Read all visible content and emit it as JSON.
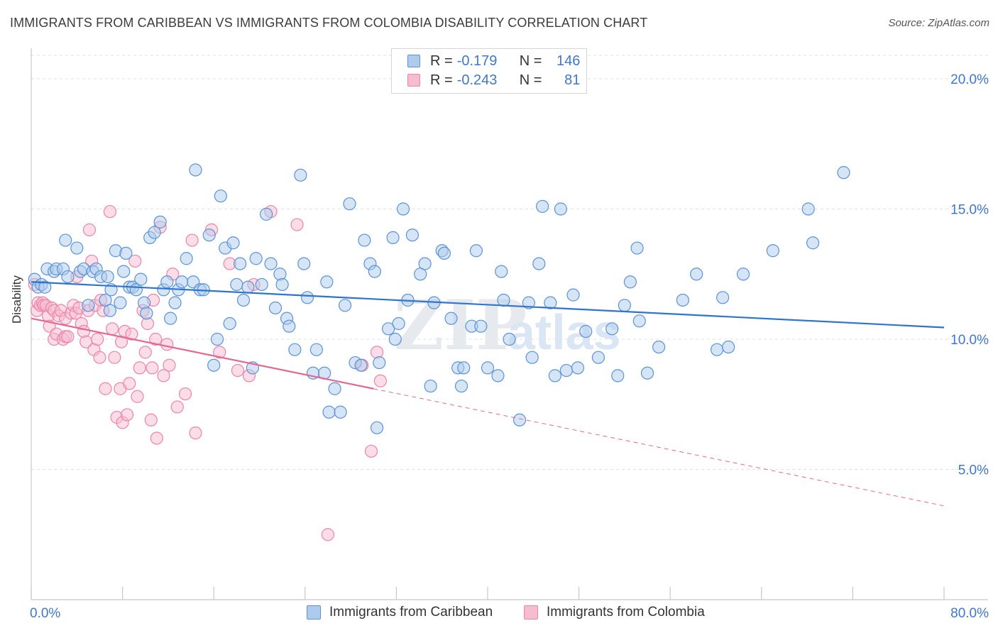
{
  "header": {
    "title": "IMMIGRANTS FROM CARIBBEAN VS IMMIGRANTS FROM COLOMBIA DISABILITY CORRELATION CHART",
    "source": "Source: ZipAtlas.com"
  },
  "watermark": {
    "zip": "ZIP",
    "atlas": "atlas"
  },
  "legend": {
    "rows": [
      {
        "r_label": "R =",
        "r_value": "-0.179",
        "n_label": "N =",
        "n_value": "146"
      },
      {
        "r_label": "R =",
        "r_value": "-0.243",
        "n_label": "N =",
        "n_value": "81"
      }
    ]
  },
  "colors": {
    "caribbean_fill": "#aecbeb",
    "caribbean_stroke": "#5b93d6",
    "caribbean_line": "#2f74cf",
    "colombia_fill": "#f6bcd0",
    "colombia_stroke": "#ec84a9",
    "colombia_line": "#e4688f",
    "axis_text": "#3f78c8",
    "grid": "#dde2ea"
  },
  "chart_data": {
    "type": "scatter",
    "title": "IMMIGRANTS FROM CARIBBEAN VS IMMIGRANTS FROM COLOMBIA DISABILITY CORRELATION CHART",
    "xlabel": "",
    "ylabel": "Disability",
    "xlim": [
      0,
      80
    ],
    "ylim": [
      0,
      20.9
    ],
    "x_tick_labels": [
      {
        "value": 0,
        "label": "0.0%"
      },
      {
        "value": 80,
        "label": "80.0%"
      }
    ],
    "y_ticks": [
      {
        "value": 5,
        "label": "5.0%"
      },
      {
        "value": 10,
        "label": "10.0%"
      },
      {
        "value": 15,
        "label": "15.0%"
      },
      {
        "value": 20,
        "label": "20.0%"
      }
    ],
    "x_minor_ticks": [
      0,
      8,
      16,
      24,
      32,
      40,
      48,
      56,
      64,
      72,
      80
    ],
    "grid": true,
    "legend_position": "top-center",
    "series": [
      {
        "name": "Immigrants from Caribbean",
        "color": "#5b93d6",
        "trend": {
          "x": [
            0,
            80
          ],
          "y": [
            12.2,
            10.45
          ]
        },
        "points": [
          [
            0.3,
            12.3
          ],
          [
            0.6,
            12.0
          ],
          [
            0.9,
            12.1
          ],
          [
            1.2,
            12.0
          ],
          [
            1.4,
            12.7
          ],
          [
            2.0,
            12.6
          ],
          [
            2.2,
            12.7
          ],
          [
            2.8,
            12.7
          ],
          [
            3.0,
            13.8
          ],
          [
            3.2,
            12.4
          ],
          [
            4.0,
            13.5
          ],
          [
            4.3,
            12.6
          ],
          [
            4.6,
            12.7
          ],
          [
            5.0,
            11.3
          ],
          [
            5.4,
            12.6
          ],
          [
            5.7,
            12.7
          ],
          [
            6.1,
            12.4
          ],
          [
            6.5,
            11.5
          ],
          [
            6.7,
            12.4
          ],
          [
            6.9,
            11.1
          ],
          [
            7.0,
            11.9
          ],
          [
            7.4,
            13.4
          ],
          [
            7.8,
            11.4
          ],
          [
            8.1,
            12.6
          ],
          [
            8.3,
            13.3
          ],
          [
            8.6,
            12.0
          ],
          [
            8.9,
            12.0
          ],
          [
            9.2,
            11.9
          ],
          [
            9.6,
            12.3
          ],
          [
            9.9,
            11.4
          ],
          [
            10.1,
            11.0
          ],
          [
            10.4,
            13.9
          ],
          [
            10.8,
            14.1
          ],
          [
            11.3,
            14.5
          ],
          [
            11.6,
            11.9
          ],
          [
            11.9,
            12.2
          ],
          [
            12.2,
            10.8
          ],
          [
            12.6,
            11.4
          ],
          [
            12.9,
            11.9
          ],
          [
            13.2,
            12.2
          ],
          [
            13.6,
            13.1
          ],
          [
            14.2,
            12.2
          ],
          [
            14.4,
            16.5
          ],
          [
            14.8,
            11.9
          ],
          [
            15.1,
            11.9
          ],
          [
            15.6,
            14.0
          ],
          [
            16.0,
            9.0
          ],
          [
            16.3,
            10.0
          ],
          [
            16.6,
            15.5
          ],
          [
            17.0,
            13.5
          ],
          [
            17.4,
            10.6
          ],
          [
            17.7,
            13.7
          ],
          [
            18.0,
            12.1
          ],
          [
            18.3,
            12.9
          ],
          [
            18.6,
            11.5
          ],
          [
            19.0,
            12.0
          ],
          [
            19.4,
            8.9
          ],
          [
            19.7,
            13.1
          ],
          [
            20.2,
            12.1
          ],
          [
            20.6,
            14.8
          ],
          [
            21.0,
            12.9
          ],
          [
            21.4,
            11.2
          ],
          [
            21.8,
            12.5
          ],
          [
            22.0,
            12.1
          ],
          [
            22.4,
            10.8
          ],
          [
            22.6,
            10.5
          ],
          [
            23.1,
            9.6
          ],
          [
            23.6,
            16.3
          ],
          [
            23.9,
            12.9
          ],
          [
            24.2,
            11.6
          ],
          [
            24.7,
            8.7
          ],
          [
            25.0,
            9.6
          ],
          [
            25.7,
            8.7
          ],
          [
            25.9,
            12.2
          ],
          [
            26.1,
            7.2
          ],
          [
            26.6,
            8.1
          ],
          [
            27.1,
            7.2
          ],
          [
            27.5,
            11.3
          ],
          [
            27.9,
            15.2
          ],
          [
            28.4,
            9.1
          ],
          [
            28.9,
            9.0
          ],
          [
            29.2,
            13.8
          ],
          [
            29.7,
            12.9
          ],
          [
            30.1,
            12.6
          ],
          [
            30.5,
            9.1
          ],
          [
            30.3,
            6.6
          ],
          [
            31.3,
            10.4
          ],
          [
            31.7,
            13.9
          ],
          [
            31.9,
            10.0
          ],
          [
            32.2,
            10.6
          ],
          [
            32.6,
            15.0
          ],
          [
            33.0,
            11.5
          ],
          [
            33.4,
            14.0
          ],
          [
            34.1,
            12.5
          ],
          [
            34.5,
            12.9
          ],
          [
            35.0,
            8.2
          ],
          [
            35.3,
            11.4
          ],
          [
            36.0,
            13.4
          ],
          [
            36.2,
            13.3
          ],
          [
            36.8,
            10.8
          ],
          [
            37.4,
            8.9
          ],
          [
            37.7,
            8.2
          ],
          [
            37.9,
            8.9
          ],
          [
            38.6,
            10.5
          ],
          [
            39.0,
            13.4
          ],
          [
            39.4,
            10.5
          ],
          [
            40.0,
            8.9
          ],
          [
            40.9,
            8.6
          ],
          [
            41.2,
            12.6
          ],
          [
            41.4,
            11.5
          ],
          [
            41.9,
            10.0
          ],
          [
            42.8,
            6.9
          ],
          [
            43.6,
            11.4
          ],
          [
            43.9,
            9.3
          ],
          [
            44.5,
            12.9
          ],
          [
            44.8,
            15.1
          ],
          [
            45.5,
            11.4
          ],
          [
            45.9,
            8.6
          ],
          [
            46.4,
            15.0
          ],
          [
            46.9,
            8.8
          ],
          [
            47.5,
            11.7
          ],
          [
            47.9,
            8.9
          ],
          [
            48.6,
            10.3
          ],
          [
            49.7,
            9.3
          ],
          [
            50.9,
            10.4
          ],
          [
            51.4,
            8.6
          ],
          [
            52.0,
            11.3
          ],
          [
            52.5,
            12.2
          ],
          [
            53.1,
            13.5
          ],
          [
            53.3,
            10.7
          ],
          [
            54.0,
            8.7
          ],
          [
            55.0,
            9.7
          ],
          [
            57.1,
            11.5
          ],
          [
            58.3,
            12.5
          ],
          [
            60.1,
            9.6
          ],
          [
            60.6,
            11.6
          ],
          [
            61.1,
            9.7
          ],
          [
            62.4,
            12.5
          ],
          [
            65.0,
            13.4
          ],
          [
            68.1,
            15.0
          ],
          [
            68.5,
            13.7
          ],
          [
            71.2,
            16.4
          ]
        ]
      },
      {
        "name": "Immigrants from Colombia",
        "color": "#ec84a9",
        "trend": {
          "x": [
            0,
            30
          ],
          "y": [
            10.8,
            8.1
          ]
        },
        "trend_dashed": {
          "x": [
            30,
            80
          ],
          "y": [
            8.1,
            3.6
          ]
        },
        "points": [
          [
            0.3,
            12.1
          ],
          [
            0.5,
            11.1
          ],
          [
            0.6,
            11.4
          ],
          [
            0.8,
            11.3
          ],
          [
            1.0,
            11.4
          ],
          [
            1.1,
            11.3
          ],
          [
            1.3,
            11.3
          ],
          [
            1.5,
            10.9
          ],
          [
            1.6,
            10.5
          ],
          [
            1.8,
            11.2
          ],
          [
            2.0,
            11.1
          ],
          [
            2.0,
            10.0
          ],
          [
            2.2,
            10.2
          ],
          [
            2.4,
            10.9
          ],
          [
            2.6,
            11.1
          ],
          [
            2.8,
            10.0
          ],
          [
            3.0,
            10.1
          ],
          [
            3.0,
            10.8
          ],
          [
            3.2,
            10.1
          ],
          [
            3.5,
            11.0
          ],
          [
            3.7,
            11.3
          ],
          [
            3.9,
            11.0
          ],
          [
            4.0,
            12.4
          ],
          [
            4.2,
            11.2
          ],
          [
            4.4,
            10.6
          ],
          [
            4.6,
            10.3
          ],
          [
            4.8,
            9.9
          ],
          [
            5.0,
            11.1
          ],
          [
            5.1,
            14.2
          ],
          [
            5.3,
            13.0
          ],
          [
            5.5,
            9.6
          ],
          [
            5.6,
            11.3
          ],
          [
            5.8,
            10.0
          ],
          [
            6.0,
            9.3
          ],
          [
            6.1,
            11.5
          ],
          [
            6.3,
            11.1
          ],
          [
            6.5,
            8.1
          ],
          [
            6.9,
            14.9
          ],
          [
            7.1,
            10.4
          ],
          [
            7.3,
            9.3
          ],
          [
            7.5,
            7.0
          ],
          [
            7.8,
            8.1
          ],
          [
            7.9,
            9.9
          ],
          [
            8.0,
            6.8
          ],
          [
            8.2,
            10.3
          ],
          [
            8.4,
            7.1
          ],
          [
            8.6,
            8.3
          ],
          [
            8.8,
            10.2
          ],
          [
            9.1,
            13.0
          ],
          [
            9.3,
            7.8
          ],
          [
            9.5,
            8.9
          ],
          [
            9.8,
            11.1
          ],
          [
            10.0,
            9.5
          ],
          [
            10.2,
            10.6
          ],
          [
            10.5,
            6.9
          ],
          [
            10.6,
            8.9
          ],
          [
            10.7,
            11.5
          ],
          [
            10.9,
            10.0
          ],
          [
            11.0,
            6.2
          ],
          [
            11.3,
            14.3
          ],
          [
            11.6,
            8.6
          ],
          [
            11.9,
            9.8
          ],
          [
            12.1,
            9.0
          ],
          [
            12.4,
            12.5
          ],
          [
            12.8,
            7.4
          ],
          [
            13.5,
            7.9
          ],
          [
            14.1,
            13.8
          ],
          [
            14.4,
            6.4
          ],
          [
            15.8,
            14.2
          ],
          [
            16.5,
            9.5
          ],
          [
            17.4,
            12.9
          ],
          [
            18.1,
            8.8
          ],
          [
            19.1,
            8.6
          ],
          [
            19.5,
            12.1
          ],
          [
            21.0,
            14.9
          ],
          [
            23.3,
            14.4
          ],
          [
            26.0,
            2.5
          ],
          [
            29.0,
            9.0
          ],
          [
            29.8,
            5.7
          ],
          [
            30.3,
            9.5
          ],
          [
            30.6,
            8.4
          ]
        ]
      }
    ]
  },
  "bottom_legend": {
    "items": [
      {
        "label": "Immigrants from Caribbean"
      },
      {
        "label": "Immigrants from Colombia"
      }
    ]
  }
}
